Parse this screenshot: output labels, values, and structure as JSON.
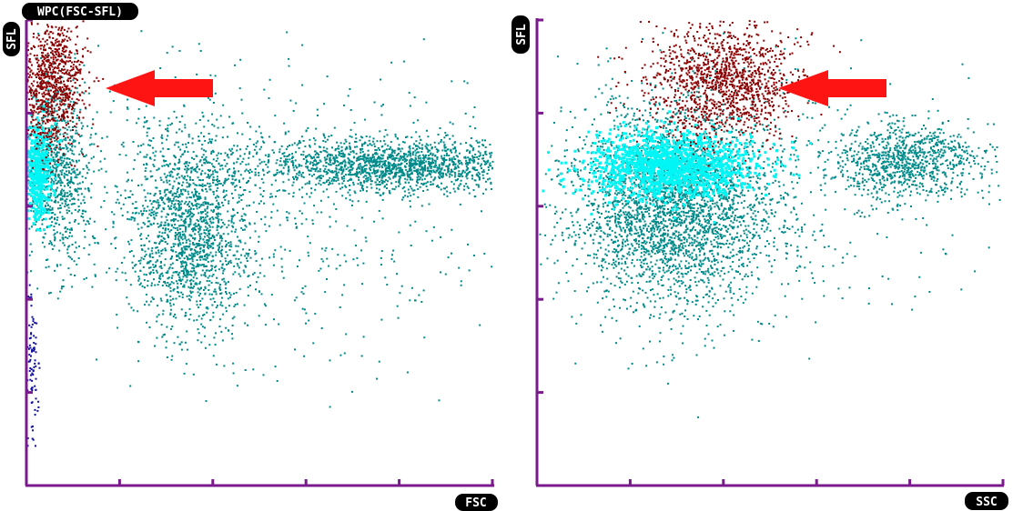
{
  "colors": {
    "axis": "#7a1a8c",
    "teal": "#008a8a",
    "cyan": "#00f5f5",
    "dark_red": "#8b0000",
    "red": "#d40000",
    "navy": "#1010a0",
    "arrow": "#ff1414",
    "label_bg": "#000000",
    "label_text": "#ffffff"
  },
  "chart_data": [
    {
      "type": "scatter",
      "title": "WPC(FSC-SFL)",
      "xlabel": "FSC",
      "ylabel": "SFL",
      "xlim": [
        0,
        5
      ],
      "ylim": [
        0,
        5
      ],
      "grid": false,
      "annotations": [
        {
          "type": "arrow",
          "points_to": {
            "x": 0.85,
            "y": 4.35
          }
        }
      ],
      "series": [
        {
          "cluster": "dark-red (top-left, highlighted)",
          "color": "#8b0000",
          "center": {
            "x": 0.25,
            "y": 4.35
          },
          "spread": {
            "x": 0.18,
            "y": 0.35
          },
          "count": 900
        },
        {
          "cluster": "cyan (left edge)",
          "color": "#00f5f5",
          "center": {
            "x": 0.12,
            "y": 3.4
          },
          "spread": {
            "x": 0.07,
            "y": 0.28
          },
          "count": 450
        },
        {
          "cluster": "teal band (left)",
          "color": "#008a8a",
          "center": {
            "x": 0.3,
            "y": 3.4
          },
          "spread": {
            "x": 0.2,
            "y": 0.5
          },
          "count": 900
        },
        {
          "cluster": "teal (middle)",
          "color": "#008a8a",
          "center": {
            "x": 1.75,
            "y": 2.75
          },
          "spread": {
            "x": 0.32,
            "y": 0.55
          },
          "count": 1500
        },
        {
          "cluster": "teal (right, wide)",
          "color": "#008a8a",
          "center": {
            "x": 3.9,
            "y": 3.45
          },
          "spread": {
            "x": 0.75,
            "y": 0.14
          },
          "count": 1700
        },
        {
          "cluster": "teal (diffuse)",
          "color": "#008a8a",
          "center": {
            "x": 2.5,
            "y": 3.0
          },
          "spread": {
            "x": 1.3,
            "y": 0.8
          },
          "count": 700
        },
        {
          "cluster": "navy (lower-left)",
          "color": "#1010a0",
          "center": {
            "x": 0.05,
            "y": 1.2
          },
          "spread": {
            "x": 0.04,
            "y": 0.45
          },
          "count": 90
        }
      ]
    },
    {
      "type": "scatter",
      "title": "",
      "xlabel": "SSC",
      "ylabel": "SFL",
      "xlim": [
        0,
        5
      ],
      "ylim": [
        0,
        5
      ],
      "grid": false,
      "annotations": [
        {
          "type": "arrow",
          "points_to": {
            "x": 2.6,
            "y": 4.3
          }
        }
      ],
      "series": [
        {
          "cluster": "dark-red (diagonal, highlighted)",
          "color": "#8b0000",
          "center": {
            "x": 2.0,
            "y": 4.35
          },
          "spread": {
            "x": 0.4,
            "y": 0.3
          },
          "count": 1300
        },
        {
          "cluster": "cyan (core)",
          "color": "#00f5f5",
          "center": {
            "x": 1.4,
            "y": 3.45
          },
          "spread": {
            "x": 0.45,
            "y": 0.18
          },
          "count": 1400
        },
        {
          "cluster": "teal (around core)",
          "color": "#008a8a",
          "center": {
            "x": 1.45,
            "y": 3.0
          },
          "spread": {
            "x": 0.55,
            "y": 0.55
          },
          "count": 3000
        },
        {
          "cluster": "teal (right)",
          "color": "#008a8a",
          "center": {
            "x": 3.95,
            "y": 3.5
          },
          "spread": {
            "x": 0.4,
            "y": 0.2
          },
          "count": 900
        },
        {
          "cluster": "teal (diffuse)",
          "color": "#008a8a",
          "center": {
            "x": 2.5,
            "y": 3.2
          },
          "spread": {
            "x": 1.3,
            "y": 0.7
          },
          "count": 450
        }
      ]
    }
  ]
}
